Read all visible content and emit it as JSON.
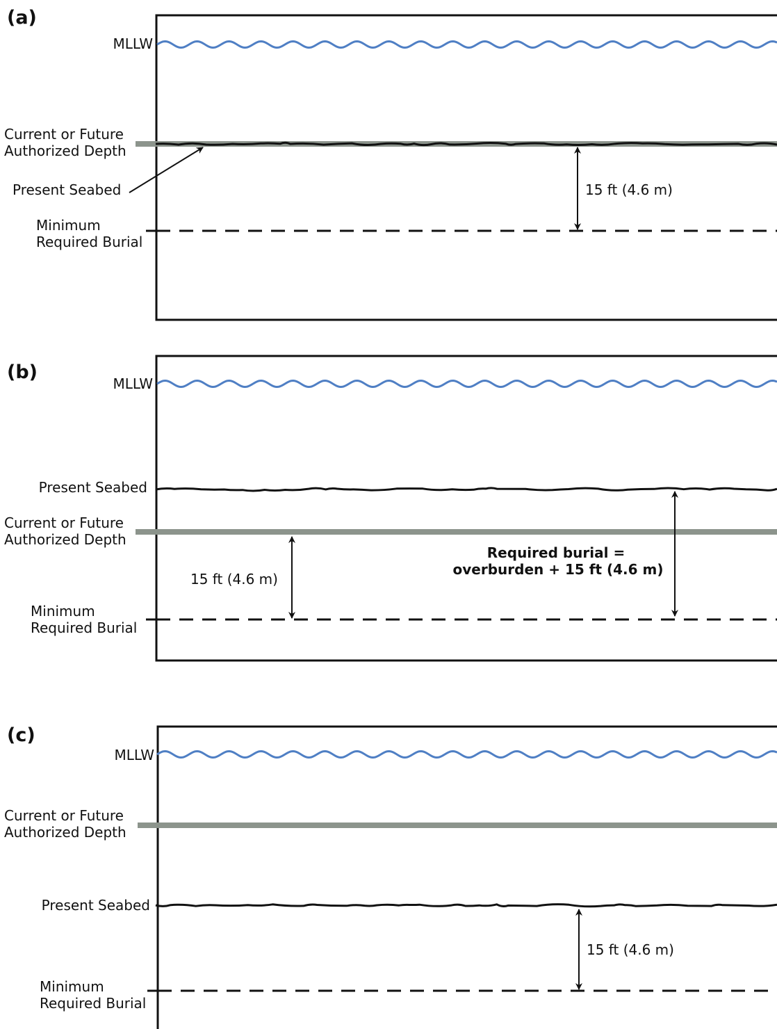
{
  "panels": [
    {
      "letter": "(a)",
      "mllw": "MLLW",
      "authorized_line1": "Current or Future",
      "authorized_line2": "Authorized Depth",
      "seabed": "Present Seabed",
      "minimum_line1": "Minimum",
      "minimum_line2": "Required Burial",
      "dimension": "15 ft (4.6 m)"
    },
    {
      "letter": "(b)",
      "mllw": "MLLW",
      "seabed": "Present Seabed",
      "authorized_line1": "Current or Future",
      "authorized_line2": "Authorized Depth",
      "dimension": "15 ft (4.6 m)",
      "required_line1": "Required burial =",
      "required_line2": "overburden + 15 ft (4.6 m)",
      "minimum_line1": "Minimum",
      "minimum_line2": "Required Burial"
    },
    {
      "letter": "(c)",
      "mllw": "MLLW",
      "authorized_line1": "Current or Future",
      "authorized_line2": "Authorized Depth",
      "seabed": "Present Seabed",
      "dimension": "15 ft (4.6 m)",
      "minimum_line1": "Minimum",
      "minimum_line2": "Required Burial"
    }
  ],
  "colors": {
    "water": "#4f7fc4",
    "authorized_depth": "#8c948c",
    "line": "#111111"
  }
}
